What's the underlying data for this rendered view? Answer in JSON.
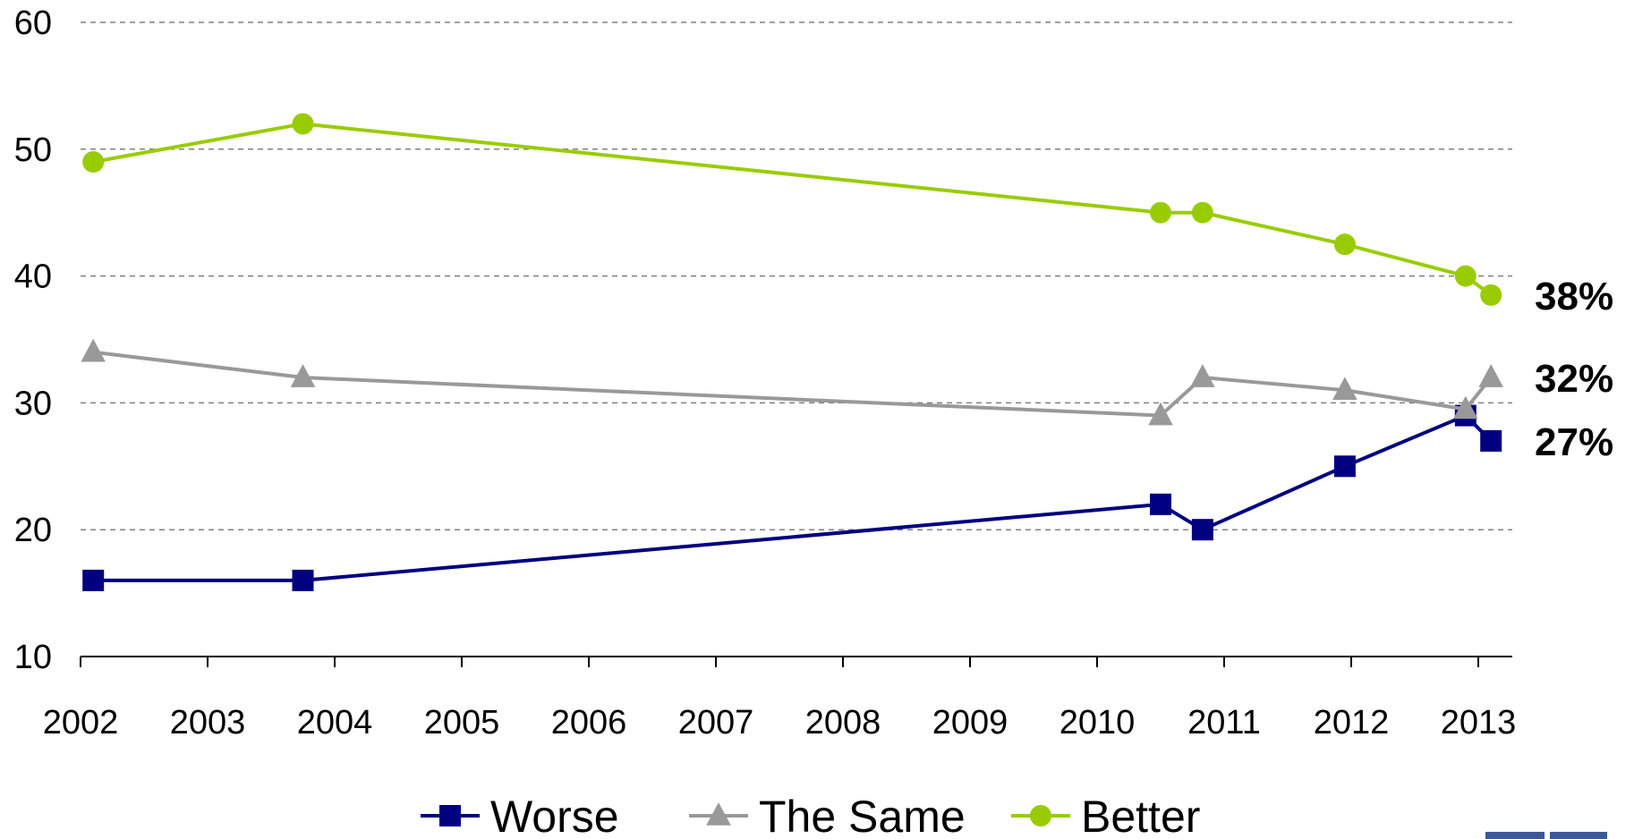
{
  "chart_data": {
    "type": "line",
    "x_ticks": [
      "2002",
      "2003",
      "2004",
      "2005",
      "2006",
      "2007",
      "2008",
      "2009",
      "2010",
      "2011",
      "2012",
      "2013"
    ],
    "y_ticks": [
      "10",
      "20",
      "30",
      "40",
      "50",
      "60"
    ],
    "ylim": [
      10,
      60
    ],
    "xlim": [
      2002,
      2013.3
    ],
    "grid": "horizontal-dashed",
    "legend_position": "bottom",
    "series": [
      {
        "name": "Worse",
        "color": "#000080",
        "marker": "square",
        "x": [
          2002.1,
          2003.75,
          2010.5,
          2010.83,
          2011.95,
          2012.9,
          2013.1
        ],
        "values": [
          16,
          16,
          22,
          20,
          25,
          29,
          27
        ],
        "end_label": "27%"
      },
      {
        "name": "The Same",
        "color": "#999999",
        "marker": "triangle",
        "x": [
          2002.1,
          2003.75,
          2010.5,
          2010.83,
          2011.95,
          2012.9,
          2013.1
        ],
        "values": [
          34,
          32,
          29,
          32,
          31,
          29.5,
          32
        ],
        "end_label": "32%"
      },
      {
        "name": "Better",
        "color": "#99CC00",
        "marker": "circle",
        "x": [
          2002.1,
          2003.75,
          2010.5,
          2010.83,
          2011.95,
          2012.9,
          2013.1
        ],
        "values": [
          49,
          52,
          45,
          45,
          42.5,
          40,
          38.5
        ],
        "end_label": "38%"
      }
    ]
  },
  "corner_logo": {
    "color": "#3B5998"
  }
}
